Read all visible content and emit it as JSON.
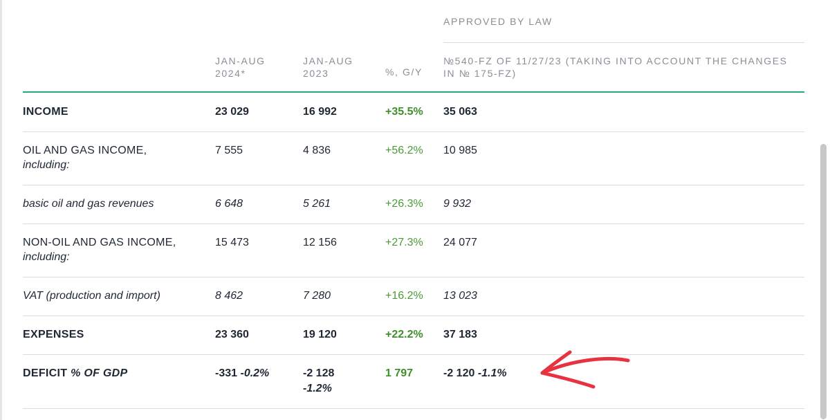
{
  "header": {
    "approved_by_law": "APPROVED BY LAW",
    "col1": "JAN-AUG 2024*",
    "col2": "JAN-AUG 2023",
    "col3": "%, G/Y",
    "col4": "№540-FZ OF 11/27/23 (TAKING INTO ACCOUNT THE CHANGES IN № 175-FZ)"
  },
  "rows": [
    {
      "label": "INCOME",
      "sub": "",
      "v2024": "23 029",
      "v2023": "16 992",
      "pct": "+35.5%",
      "law": "35 063"
    },
    {
      "label": "OIL AND GAS INCOME,",
      "sub": "including:",
      "v2024": "7 555",
      "v2023": "4 836",
      "pct": "+56.2%",
      "law": "10 985"
    },
    {
      "label": "basic oil and gas revenues",
      "sub": "",
      "v2024": "6 648",
      "v2023": "5 261",
      "pct": "+26.3%",
      "law": "9 932"
    },
    {
      "label": "NON-OIL AND GAS INCOME,",
      "sub": "including:",
      "v2024": "15 473",
      "v2023": "12 156",
      "pct": "+27.3%",
      "law": "24 077"
    },
    {
      "label": "VAT (production and import)",
      "sub": "",
      "v2024": "8 462",
      "v2023": "7 280",
      "pct": "+16.2%",
      "law": "13 023"
    },
    {
      "label": "EXPENSES",
      "sub": "",
      "v2024": "23 360",
      "v2023": "19 120",
      "pct": "+22.2%",
      "law": "37 183"
    }
  ],
  "deficit": {
    "label": "DEFICIT",
    "label_gdp": "% OF GDP",
    "v2024": "-331",
    "v2024_pct": "-0.2%",
    "v2023": "-2 128",
    "v2023_pct": "-1.2%",
    "diff": "1 797",
    "law": "-2 120",
    "law_pct": "-1.1%"
  },
  "colors": {
    "accent_rule": "#26a783",
    "positive_text": "#4b9a35",
    "annotation_arrow": "#e8323f"
  }
}
